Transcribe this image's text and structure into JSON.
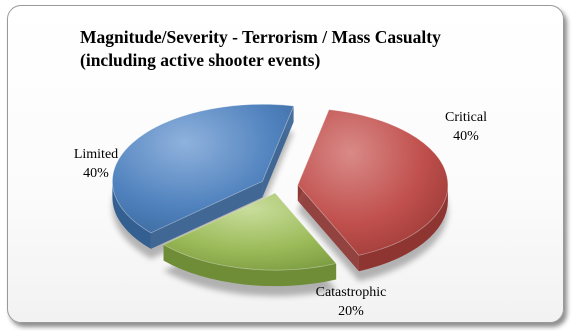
{
  "colors": {
    "critical": "#c0504d",
    "catastrophic": "#9bbb59",
    "limited": "#4f81bd",
    "frame_border": "#9a9a9a"
  },
  "chart_data": {
    "type": "pie",
    "title_line1": "Magnitude/Severity - Terrorism / Mass Casualty",
    "title_line2": "(including active shooter events)",
    "style": "3d-exploded",
    "legend": "none",
    "slices": [
      {
        "name": "Critical",
        "value": 40,
        "label": "40%"
      },
      {
        "name": "Catastrophic",
        "value": 20,
        "label": "20%"
      },
      {
        "name": "Limited",
        "value": 40,
        "label": "40%"
      }
    ]
  }
}
